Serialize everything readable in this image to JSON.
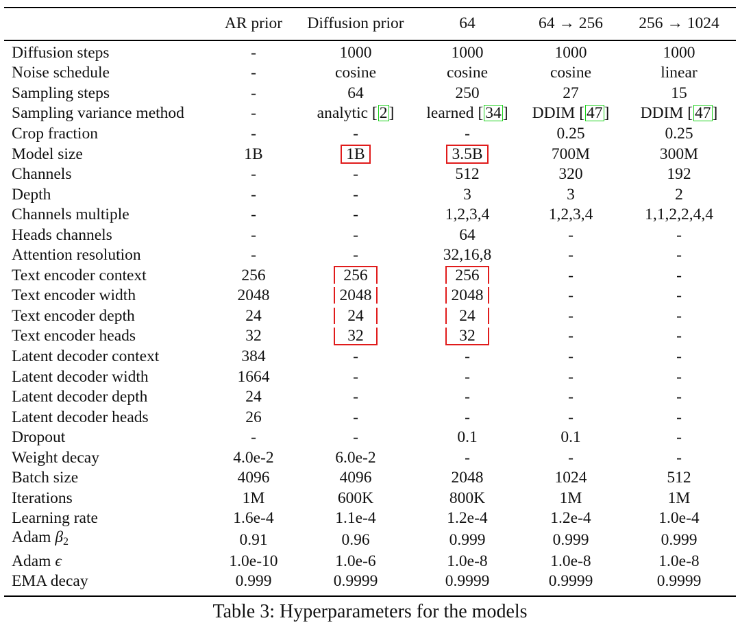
{
  "table": {
    "columns": [
      "",
      "AR prior",
      "Diffusion prior",
      "64",
      "64 → 256",
      "256 → 1024"
    ],
    "rows": [
      {
        "label": "Diffusion steps",
        "values": [
          "-",
          "1000",
          "1000",
          "1000",
          "1000"
        ]
      },
      {
        "label": "Noise schedule",
        "values": [
          "-",
          "cosine",
          "cosine",
          "cosine",
          "linear"
        ]
      },
      {
        "label": "Sampling steps",
        "values": [
          "-",
          "64",
          "250",
          "27",
          "15"
        ]
      },
      {
        "label": "Sampling variance method",
        "values": [
          "-",
          "analytic",
          "learned",
          "DDIM",
          "DDIM"
        ]
      },
      {
        "label": "Crop fraction",
        "values": [
          "-",
          "-",
          "-",
          "0.25",
          "0.25"
        ]
      },
      {
        "label": "Model size",
        "values": [
          "1B",
          "1B",
          "3.5B",
          "700M",
          "300M"
        ]
      },
      {
        "label": "Channels",
        "values": [
          "-",
          "-",
          "512",
          "320",
          "192"
        ]
      },
      {
        "label": "Depth",
        "values": [
          "-",
          "-",
          "3",
          "3",
          "2"
        ]
      },
      {
        "label": "Channels multiple",
        "values": [
          "-",
          "-",
          "1,2,3,4",
          "1,2,3,4",
          "1,1,2,2,4,4"
        ]
      },
      {
        "label": "Heads channels",
        "values": [
          "-",
          "-",
          "64",
          "-",
          "-"
        ]
      },
      {
        "label": "Attention resolution",
        "values": [
          "-",
          "-",
          "32,16,8",
          "-",
          "-"
        ]
      },
      {
        "label": "Text encoder context",
        "values": [
          "256",
          "256",
          "256",
          "-",
          "-"
        ]
      },
      {
        "label": "Text encoder width",
        "values": [
          "2048",
          "2048",
          "2048",
          "-",
          "-"
        ]
      },
      {
        "label": "Text encoder depth",
        "values": [
          "24",
          "24",
          "24",
          "-",
          "-"
        ]
      },
      {
        "label": "Text encoder heads",
        "values": [
          "32",
          "32",
          "32",
          "-",
          "-"
        ]
      },
      {
        "label": "Latent decoder context",
        "values": [
          "384",
          "-",
          "-",
          "-",
          "-"
        ]
      },
      {
        "label": "Latent decoder width",
        "values": [
          "1664",
          "-",
          "-",
          "-",
          "-"
        ]
      },
      {
        "label": "Latent decoder depth",
        "values": [
          "24",
          "-",
          "-",
          "-",
          "-"
        ]
      },
      {
        "label": "Latent decoder heads",
        "values": [
          "26",
          "-",
          "-",
          "-",
          "-"
        ]
      },
      {
        "label": "Dropout",
        "values": [
          "-",
          "-",
          "0.1",
          "0.1",
          "-"
        ]
      },
      {
        "label": "Weight decay",
        "values": [
          "4.0e-2",
          "6.0e-2",
          "-",
          "-",
          "-"
        ]
      },
      {
        "label": "Batch size",
        "values": [
          "4096",
          "4096",
          "2048",
          "1024",
          "512"
        ]
      },
      {
        "label": "Iterations",
        "values": [
          "1M",
          "600K",
          "800K",
          "1M",
          "1M"
        ]
      },
      {
        "label": "Learning rate",
        "values": [
          "1.6e-4",
          "1.1e-4",
          "1.2e-4",
          "1.2e-4",
          "1.0e-4"
        ]
      },
      {
        "label": "Adam",
        "symbol": "β",
        "subscript": "2",
        "values": [
          "0.91",
          "0.96",
          "0.999",
          "0.999",
          "0.999"
        ]
      },
      {
        "label": "Adam",
        "symbol": "ϵ",
        "values": [
          "1.0e-10",
          "1.0e-6",
          "1.0e-8",
          "1.0e-8",
          "1.0e-8"
        ]
      },
      {
        "label": "EMA decay",
        "values": [
          "0.999",
          "0.9999",
          "0.9999",
          "0.9999",
          "0.9999"
        ]
      }
    ],
    "citations": {
      "analytic": "2",
      "learned": "34",
      "ddim": "47"
    }
  },
  "highlights": {
    "color": "#e01b1b",
    "cells": [
      {
        "row": 5,
        "col": 1,
        "style": "box"
      },
      {
        "row": 5,
        "col": 2,
        "style": "box"
      },
      {
        "row": 11,
        "col": 1,
        "style": "group-top"
      },
      {
        "row": 12,
        "col": 1,
        "style": "group-mid"
      },
      {
        "row": 13,
        "col": 1,
        "style": "group-mid"
      },
      {
        "row": 14,
        "col": 1,
        "style": "group-bottom"
      },
      {
        "row": 11,
        "col": 2,
        "style": "group-top"
      },
      {
        "row": 12,
        "col": 2,
        "style": "group-mid"
      },
      {
        "row": 13,
        "col": 2,
        "style": "group-mid"
      },
      {
        "row": 14,
        "col": 2,
        "style": "group-bottom"
      }
    ]
  },
  "citation_color": "#19d119",
  "caption": "Table 3: Hyperparameters for the models"
}
